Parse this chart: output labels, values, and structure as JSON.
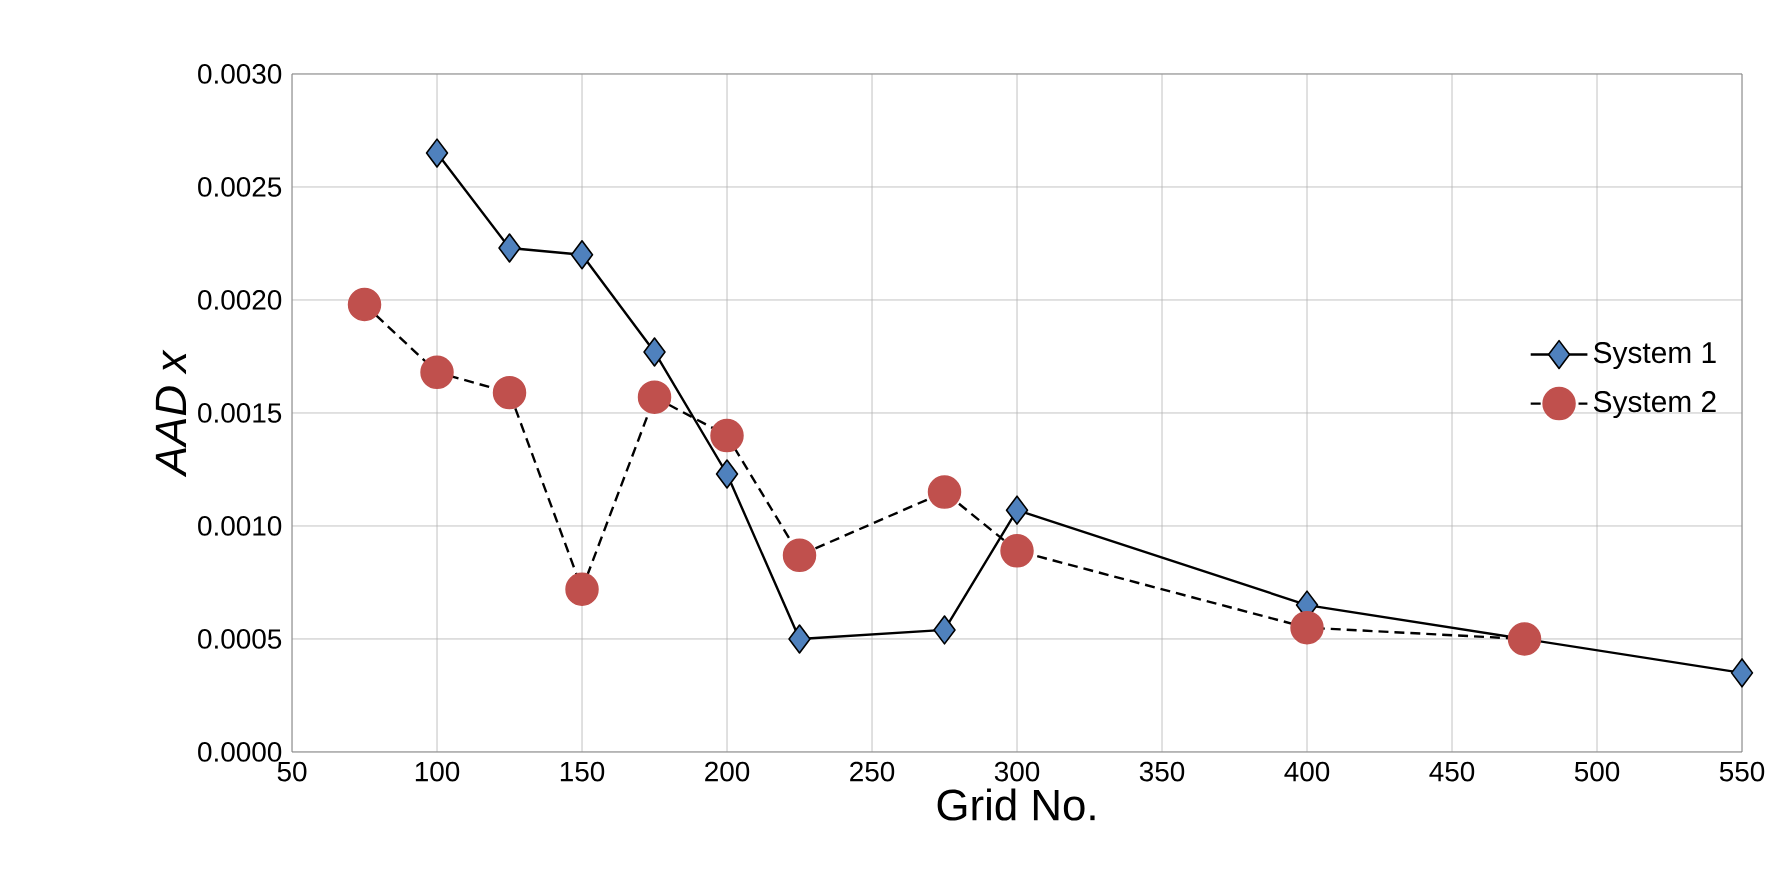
{
  "chart_data": {
    "type": "line",
    "xlabel": "Grid No.",
    "ylabel": "AAD x",
    "xlim": [
      50,
      550
    ],
    "xticks": [
      50,
      100,
      150,
      200,
      250,
      300,
      350,
      400,
      450,
      500,
      550
    ],
    "ylim": [
      0,
      0.003
    ],
    "yticks": [
      {
        "value": 0,
        "label": "0.0000"
      },
      {
        "value": 0.0005,
        "label": "0.0005"
      },
      {
        "value": 0.001,
        "label": "0.0010"
      },
      {
        "value": 0.0015,
        "label": "0.0015"
      },
      {
        "value": 0.002,
        "label": "0.0020"
      },
      {
        "value": 0.0025,
        "label": "0.0025"
      },
      {
        "value": 0.003,
        "label": "0.0030"
      }
    ],
    "grid": true,
    "legend": "right",
    "series": [
      {
        "name": "System 1",
        "color": "#4f81bd",
        "marker": "diamond",
        "line_style": "solid",
        "x": [
          100,
          125,
          150,
          175,
          200,
          225,
          275,
          300,
          400,
          550
        ],
        "values": [
          0.00265,
          0.00223,
          0.0022,
          0.00177,
          0.00123,
          0.0005,
          0.00054,
          0.00107,
          0.00065,
          0.00035
        ]
      },
      {
        "name": "System 2",
        "color": "#c0504d",
        "marker": "circle",
        "line_style": "dashed",
        "x": [
          75,
          100,
          125,
          150,
          175,
          200,
          225,
          275,
          300,
          400,
          475
        ],
        "values": [
          0.00198,
          0.00168,
          0.00159,
          0.00072,
          0.00157,
          0.0014,
          0.00087,
          0.00115,
          0.00089,
          0.00055,
          0.0005
        ]
      }
    ]
  }
}
